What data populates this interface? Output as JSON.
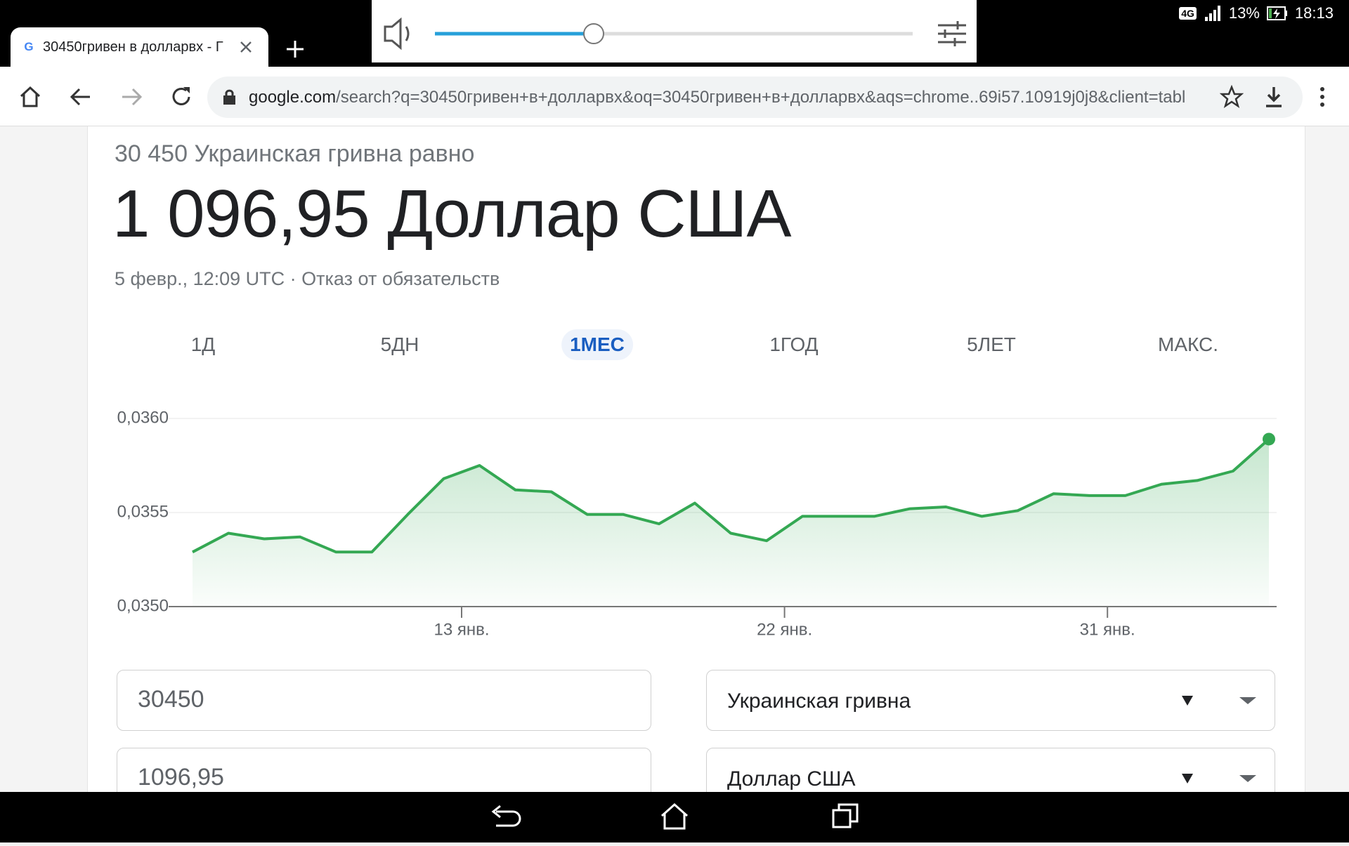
{
  "status_bar": {
    "network": "4G",
    "battery": "13%",
    "time": "18:13"
  },
  "tab": {
    "title": "30450гривен в долларвх - Г"
  },
  "address_bar": {
    "domain": "google.com",
    "path": "/search?q=30450гривен+в+долларвх&oq=30450гривен+в+долларвх&aqs=chrome..69i57.10919j0j8&client=tabl"
  },
  "converter": {
    "subtitle": "30 450 Украинская гривна равно",
    "result": "1 096,95 Доллар США",
    "timestamp": "5 февр., 12:09 UTC · Отказ от обязательств",
    "ranges": [
      "1Д",
      "5ДН",
      "1МЕС",
      "1ГОД",
      "5ЛЕТ",
      "МАКС."
    ],
    "active_range": 2,
    "amount_from": "30450",
    "amount_to": "1096,95",
    "currency_from": "Украинская гривна",
    "currency_to": "Доллар США"
  },
  "chart_data": {
    "type": "line",
    "color": "#34a853",
    "categories": [
      null,
      null,
      null,
      null,
      null,
      null,
      null,
      "13 янв.",
      null,
      null,
      null,
      null,
      null,
      null,
      null,
      null,
      "22 янв.",
      null,
      null,
      null,
      null,
      null,
      null,
      null,
      null,
      "31 янв.",
      null,
      null,
      null,
      null,
      null
    ],
    "values": [
      0.03529,
      0.03539,
      0.03536,
      0.03537,
      0.03529,
      0.03529,
      0.03549,
      0.03568,
      0.03575,
      0.03562,
      0.03561,
      0.03549,
      0.03549,
      0.03544,
      0.03555,
      0.03539,
      0.03535,
      0.03548,
      0.03548,
      0.03548,
      0.03552,
      0.03553,
      0.03548,
      0.03551,
      0.0356,
      0.03559,
      0.03559,
      0.03565,
      0.03567,
      0.03572,
      0.03589
    ],
    "ylim": [
      0.035,
      0.036
    ],
    "yticks": [
      {
        "value": 0.035,
        "label": "0,0350"
      },
      {
        "value": 0.0355,
        "label": "0,0355"
      },
      {
        "value": 0.036,
        "label": "0,0360"
      }
    ],
    "grid": true
  }
}
